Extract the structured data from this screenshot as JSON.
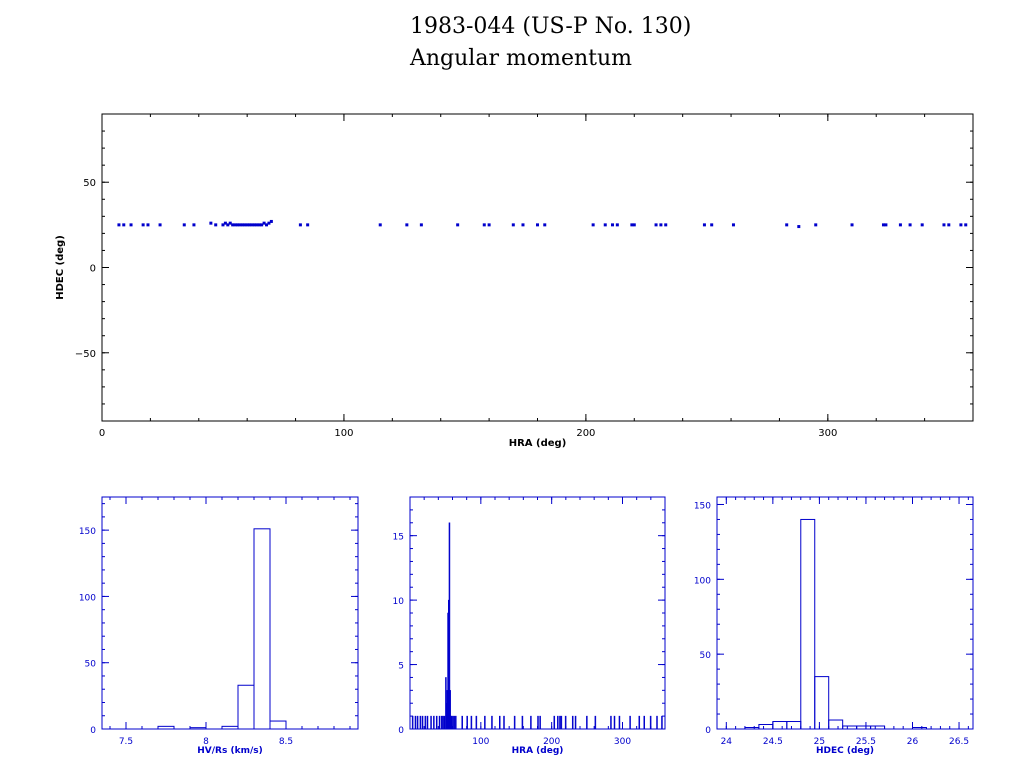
{
  "header": {
    "title": "1983-044 (US-P No. 130)",
    "subtitle": "Angular momentum"
  },
  "chart_data": [
    {
      "type": "scatter",
      "xlabel": "HRA (deg)",
      "ylabel": "HDEC (deg)",
      "xlim": [
        0,
        360
      ],
      "ylim": [
        -90,
        90
      ],
      "xticks": [
        0,
        100,
        200,
        300
      ],
      "yticks": [
        -50,
        0,
        50
      ],
      "color": "#0000cc",
      "x": [
        7,
        9,
        12,
        17,
        19,
        24,
        34,
        38,
        45,
        47,
        50,
        51,
        52,
        53,
        54,
        55,
        56,
        57,
        58,
        59,
        60,
        61,
        62,
        63,
        64,
        65,
        66,
        67,
        68,
        69,
        70,
        82,
        85,
        115,
        126,
        132,
        147,
        158,
        160,
        170,
        174,
        180,
        183,
        203,
        208,
        211,
        213,
        219,
        220,
        229,
        231,
        233,
        249,
        252,
        261,
        283,
        288,
        295,
        310,
        323,
        324,
        330,
        334,
        339,
        348,
        350,
        355,
        357
      ],
      "y": [
        25,
        25,
        25,
        25,
        25,
        25,
        25,
        25,
        26,
        25,
        25,
        26,
        25,
        26,
        25,
        25,
        25,
        25,
        25,
        25,
        25,
        25,
        25,
        25,
        25,
        25,
        25,
        26,
        25,
        26,
        27,
        25,
        25,
        25,
        25,
        25,
        25,
        25,
        25,
        25,
        25,
        25,
        25,
        25,
        25,
        25,
        25,
        25,
        25,
        25,
        25,
        25,
        25,
        25,
        25,
        25,
        24,
        25,
        25,
        25,
        25,
        25,
        25,
        25,
        25,
        25,
        25,
        25
      ]
    },
    {
      "type": "bar",
      "xlabel": "HV/Rs (km/s)",
      "xlim": [
        7.35,
        8.95
      ],
      "ylim": [
        0,
        175
      ],
      "xticks": [
        7.5,
        8,
        8.5
      ],
      "yticks": [
        0,
        50,
        100,
        150
      ],
      "bin_edges": [
        7.7,
        7.8,
        7.9,
        8.0,
        8.1,
        8.2,
        8.3,
        8.4,
        8.5
      ],
      "values": [
        2,
        0,
        1,
        0,
        2,
        33,
        151,
        6
      ],
      "color": "#0000cc"
    },
    {
      "type": "bar",
      "xlabel": "HRA (deg)",
      "xlim": [
        0,
        360
      ],
      "ylim": [
        0,
        18
      ],
      "xticks": [
        100,
        200,
        300
      ],
      "yticks": [
        0,
        5,
        10,
        15
      ],
      "bin_width": 1,
      "bins": [
        {
          "x": 3,
          "v": 1
        },
        {
          "x": 7,
          "v": 1
        },
        {
          "x": 10,
          "v": 1
        },
        {
          "x": 14,
          "v": 1
        },
        {
          "x": 17,
          "v": 1
        },
        {
          "x": 21,
          "v": 1
        },
        {
          "x": 24,
          "v": 1
        },
        {
          "x": 29,
          "v": 1
        },
        {
          "x": 33,
          "v": 1
        },
        {
          "x": 37,
          "v": 1
        },
        {
          "x": 41,
          "v": 1
        },
        {
          "x": 44,
          "v": 1
        },
        {
          "x": 46,
          "v": 1
        },
        {
          "x": 48,
          "v": 1
        },
        {
          "x": 50,
          "v": 4
        },
        {
          "x": 51,
          "v": 2
        },
        {
          "x": 52,
          "v": 3
        },
        {
          "x": 53,
          "v": 9
        },
        {
          "x": 54,
          "v": 10
        },
        {
          "x": 55,
          "v": 16
        },
        {
          "x": 56,
          "v": 3
        },
        {
          "x": 57,
          "v": 1
        },
        {
          "x": 58,
          "v": 1
        },
        {
          "x": 60,
          "v": 1
        },
        {
          "x": 62,
          "v": 1
        },
        {
          "x": 64,
          "v": 1
        },
        {
          "x": 73,
          "v": 1
        },
        {
          "x": 80,
          "v": 1
        },
        {
          "x": 86,
          "v": 1
        },
        {
          "x": 93,
          "v": 1
        },
        {
          "x": 105,
          "v": 1
        },
        {
          "x": 115,
          "v": 1
        },
        {
          "x": 126,
          "v": 1
        },
        {
          "x": 132,
          "v": 1
        },
        {
          "x": 147,
          "v": 1
        },
        {
          "x": 158,
          "v": 1
        },
        {
          "x": 170,
          "v": 1
        },
        {
          "x": 180,
          "v": 1
        },
        {
          "x": 183,
          "v": 1
        },
        {
          "x": 203,
          "v": 1
        },
        {
          "x": 208,
          "v": 1
        },
        {
          "x": 211,
          "v": 1
        },
        {
          "x": 213,
          "v": 1
        },
        {
          "x": 219,
          "v": 1
        },
        {
          "x": 229,
          "v": 1
        },
        {
          "x": 233,
          "v": 1
        },
        {
          "x": 249,
          "v": 1
        },
        {
          "x": 261,
          "v": 1
        },
        {
          "x": 283,
          "v": 1
        },
        {
          "x": 288,
          "v": 1
        },
        {
          "x": 295,
          "v": 1
        },
        {
          "x": 310,
          "v": 1
        },
        {
          "x": 323,
          "v": 1
        },
        {
          "x": 330,
          "v": 1
        },
        {
          "x": 339,
          "v": 1
        },
        {
          "x": 348,
          "v": 1
        },
        {
          "x": 355,
          "v": 1
        }
      ],
      "color": "#0000cc"
    },
    {
      "type": "bar",
      "xlabel": "HDEC (deg)",
      "xlim": [
        23.9,
        26.65
      ],
      "ylim": [
        0,
        155
      ],
      "xticks": [
        24,
        24.5,
        25,
        25.5,
        26,
        26.5
      ],
      "yticks": [
        0,
        50,
        100,
        150
      ],
      "bin_edges": [
        24.2,
        24.35,
        24.5,
        24.65,
        24.8,
        24.95,
        25.1,
        25.25,
        25.4,
        25.55,
        25.7,
        25.85,
        26.0,
        26.15
      ],
      "values": [
        1,
        3,
        5,
        5,
        140,
        35,
        6,
        2,
        2,
        2,
        0,
        0,
        1
      ],
      "color": "#0000cc"
    }
  ]
}
